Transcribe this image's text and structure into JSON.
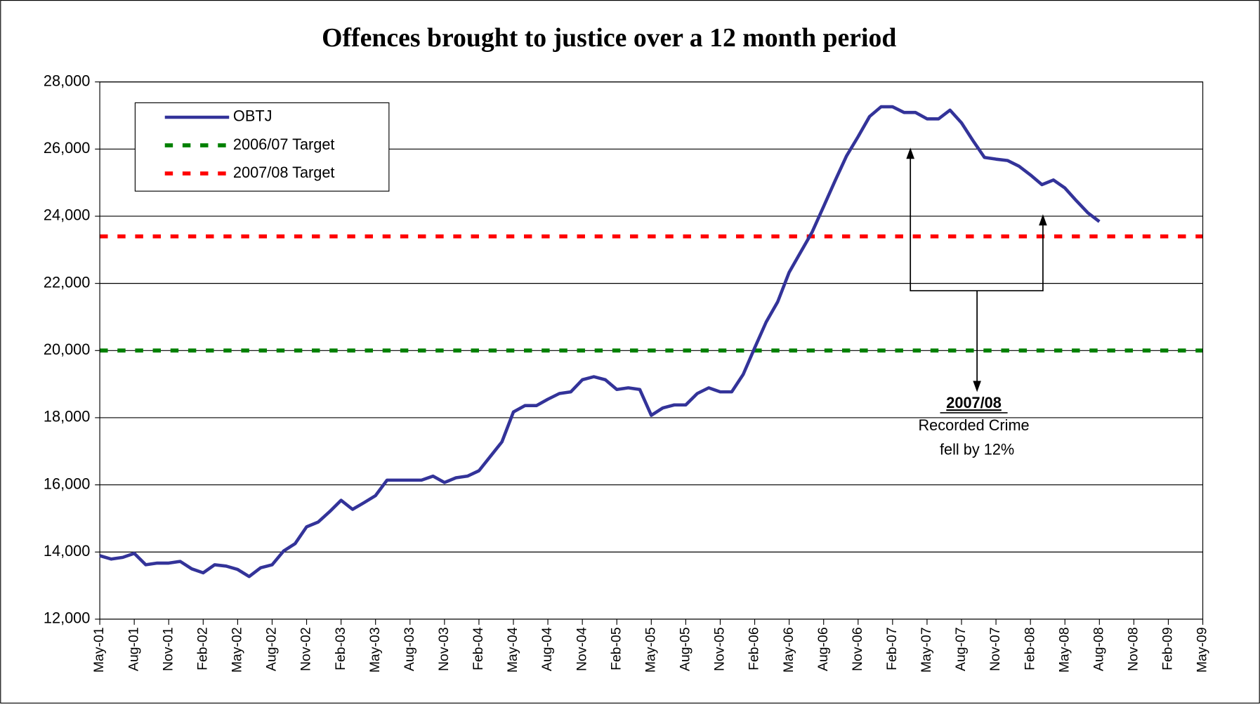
{
  "chart_data": {
    "type": "line",
    "title": "Offences brought to justice over a 12 month period",
    "categories": [
      "May-01",
      null,
      null,
      "Aug-01",
      null,
      null,
      "Nov-01",
      null,
      null,
      "Feb-02",
      null,
      null,
      "May-02",
      null,
      null,
      "Aug-02",
      null,
      null,
      "Nov-02",
      null,
      null,
      "Feb-03",
      null,
      null,
      "May-03",
      null,
      null,
      "Aug-03",
      null,
      null,
      "Nov-03",
      null,
      null,
      "Feb-04",
      null,
      null,
      "May-04",
      null,
      null,
      "Aug-04",
      null,
      null,
      "Nov-04",
      null,
      null,
      "Feb-05",
      null,
      null,
      "May-05",
      null,
      null,
      "Aug-05",
      null,
      null,
      "Nov-05",
      null,
      null,
      "Feb-06",
      null,
      null,
      "May-06",
      null,
      null,
      "Aug-06",
      null,
      null,
      "Nov-06",
      null,
      null,
      "Feb-07",
      null,
      null,
      "May-07",
      null,
      null,
      "Aug-07",
      null,
      null,
      "Nov-07",
      null,
      null,
      "Feb-08",
      null,
      null,
      "May-08",
      null,
      null,
      "Aug-08",
      null,
      null,
      "Nov-08",
      null,
      null,
      "Feb-09",
      null,
      null,
      "May-09"
    ],
    "series": [
      {
        "name": "OBTJ",
        "color": "#333399",
        "values": [
          13890,
          13790,
          13840,
          13960,
          13620,
          13670,
          13670,
          13720,
          13500,
          13380,
          13620,
          13580,
          13480,
          13270,
          13530,
          13620,
          14030,
          14250,
          14750,
          14890,
          15200,
          15540,
          15270,
          15470,
          15680,
          16140,
          16140,
          16140,
          16140,
          16260,
          16070,
          16210,
          16260,
          16420,
          16850,
          17280,
          18170,
          18360,
          18360,
          18550,
          18720,
          18770,
          19130,
          19220,
          19130,
          18840,
          18890,
          18840,
          18070,
          18290,
          18380,
          18380,
          18720,
          18890,
          18770,
          18770,
          19290,
          20080,
          20850,
          21450,
          22330,
          22930,
          23530,
          24290,
          25060,
          25800,
          26370,
          26970,
          27260,
          27260,
          27090,
          27090,
          26900,
          26900,
          27160,
          26780,
          26250,
          25750,
          25700,
          25660,
          25490,
          25230,
          24940,
          25080,
          24840,
          24460,
          24100,
          23840,
          null,
          null,
          null,
          null,
          null,
          null,
          null,
          null,
          null
        ]
      }
    ],
    "reference_lines": [
      {
        "name": "2006/07 Target",
        "color": "#008000",
        "value": 20000
      },
      {
        "name": "2007/08 Target",
        "color": "#ff0000",
        "value": 23400
      }
    ],
    "ylim": [
      12000,
      28000
    ],
    "yticks": [
      {
        "value": 12000,
        "label": "12,000"
      },
      {
        "value": 14000,
        "label": "14,000"
      },
      {
        "value": 16000,
        "label": "16,000"
      },
      {
        "value": 18000,
        "label": "18,000"
      },
      {
        "value": 20000,
        "label": "20,000"
      },
      {
        "value": 22000,
        "label": "22,000"
      },
      {
        "value": 24000,
        "label": "24,000"
      },
      {
        "value": 26000,
        "label": "26,000"
      },
      {
        "value": 28000,
        "label": "28,000"
      }
    ],
    "grid": true,
    "legend": "top-left",
    "annotation": {
      "title": "2007/08",
      "lines": [
        "Recorded Crime",
        "fell by 12%"
      ]
    }
  }
}
